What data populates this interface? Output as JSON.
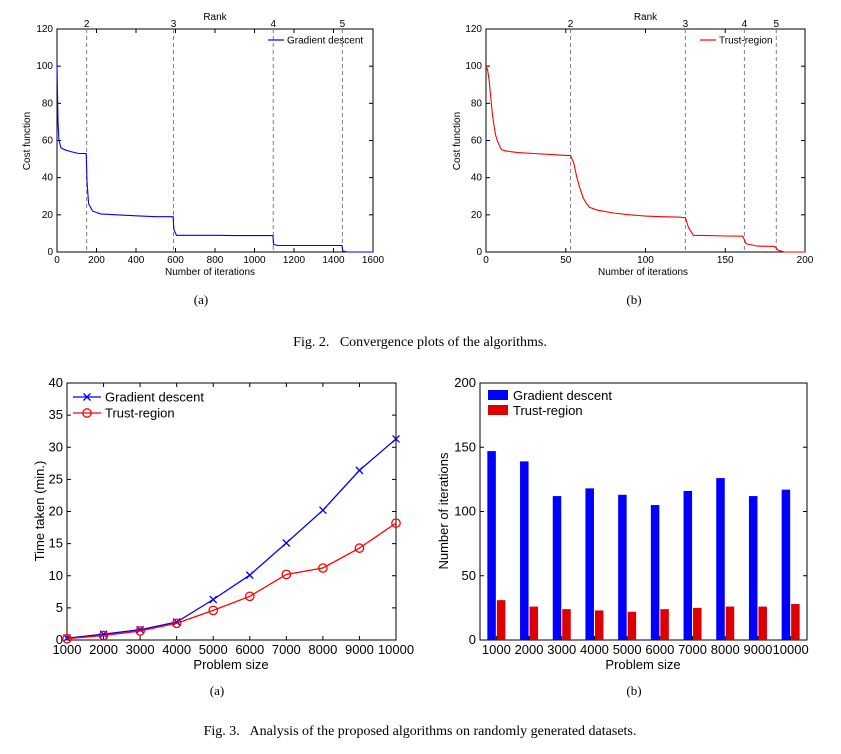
{
  "figure2": {
    "caption": "Fig. 2.   Convergence plots of the algorithms.",
    "subcaptions": [
      "(a)",
      "(b)"
    ]
  },
  "figure3": {
    "caption": "Fig. 3.   Analysis of the proposed algorithms on randomly generated datasets.",
    "subcaptions": [
      "(a)",
      "(b)"
    ]
  },
  "colors": {
    "gd": "#0000ff",
    "tr": "#ff0000",
    "bar_gd": "#0000ff",
    "bar_tr": "#dd0000",
    "rank_line": "#808080"
  },
  "chart_data": [
    {
      "id": "fig2a",
      "type": "line",
      "title": "Rank",
      "xlabel": "Number of iterations",
      "ylabel": "Cost function",
      "xlim": [
        0,
        1600
      ],
      "ylim": [
        0,
        120
      ],
      "xticks": [
        0,
        200,
        400,
        600,
        800,
        1000,
        1200,
        1400,
        1600
      ],
      "yticks": [
        0,
        20,
        40,
        60,
        80,
        100,
        120
      ],
      "rank_markers": [
        {
          "x": 150,
          "label": "2"
        },
        {
          "x": 590,
          "label": "3"
        },
        {
          "x": 1095,
          "label": "4"
        },
        {
          "x": 1445,
          "label": "5"
        }
      ],
      "legend_position": "top-right",
      "series": [
        {
          "name": "Gradient descent",
          "color": "#0000ff",
          "x": [
            0,
            5,
            10,
            20,
            40,
            70,
            110,
            148,
            152,
            160,
            180,
            220,
            300,
            400,
            500,
            588,
            592,
            605,
            700,
            800,
            900,
            1000,
            1093,
            1097,
            1120,
            1200,
            1300,
            1443,
            1447,
            1470,
            1600
          ],
          "y": [
            100,
            70,
            60,
            56,
            55,
            54,
            53,
            53,
            38,
            26,
            22,
            20.5,
            20,
            19.5,
            19,
            19,
            12,
            9,
            9,
            9,
            8.8,
            8.8,
            8.8,
            4,
            3.5,
            3.5,
            3.5,
            3.5,
            0.5,
            0,
            0
          ]
        }
      ]
    },
    {
      "id": "fig2b",
      "type": "line",
      "title": "Rank",
      "xlabel": "Number of iterations",
      "ylabel": "Cost function",
      "xlim": [
        0,
        200
      ],
      "ylim": [
        0,
        120
      ],
      "xticks": [
        0,
        50,
        100,
        150,
        200
      ],
      "yticks": [
        0,
        20,
        40,
        60,
        80,
        100,
        120
      ],
      "rank_markers": [
        {
          "x": 53,
          "label": "2"
        },
        {
          "x": 125,
          "label": "3"
        },
        {
          "x": 162,
          "label": "4"
        },
        {
          "x": 182,
          "label": "5"
        }
      ],
      "legend_position": "top-right",
      "series": [
        {
          "name": "Trust-region",
          "color": "#ff0000",
          "x": [
            0,
            1,
            2,
            3,
            4,
            5,
            6,
            7,
            8,
            9,
            10,
            12,
            15,
            20,
            30,
            40,
            50,
            53,
            55,
            57,
            59,
            61,
            63,
            65,
            70,
            80,
            90,
            100,
            110,
            120,
            125,
            127,
            130,
            140,
            150,
            161,
            163,
            170,
            181,
            183,
            187,
            200
          ],
          "y": [
            100,
            98,
            92,
            83,
            74,
            68,
            63,
            60,
            58,
            56,
            55,
            54.5,
            54,
            53.5,
            53,
            52.5,
            52,
            52,
            48,
            40,
            34,
            29,
            26,
            24,
            22.5,
            21,
            20,
            19.3,
            19,
            18.8,
            18.5,
            13,
            9,
            8.8,
            8.6,
            8.5,
            4.5,
            3.2,
            3,
            1,
            0,
            0
          ]
        }
      ]
    },
    {
      "id": "fig3a",
      "type": "line",
      "xlabel": "Problem size",
      "ylabel": "Time taken (min.)",
      "xlim": [
        1000,
        10000
      ],
      "ylim": [
        0,
        40
      ],
      "xticks": [
        1000,
        2000,
        3000,
        4000,
        5000,
        6000,
        7000,
        8000,
        9000,
        10000
      ],
      "yticks": [
        0,
        5,
        10,
        15,
        20,
        25,
        30,
        35,
        40
      ],
      "legend_position": "top-left",
      "series": [
        {
          "name": "Gradient descent",
          "color": "#0000ff",
          "marker": "x",
          "x": [
            1000,
            2000,
            3000,
            4000,
            5000,
            6000,
            7000,
            8000,
            9000,
            10000
          ],
          "y": [
            0.3,
            0.9,
            1.6,
            2.8,
            6.3,
            10.1,
            15.1,
            20.2,
            26.4,
            31.3
          ]
        },
        {
          "name": "Trust-region",
          "color": "#ff0000",
          "marker": "o",
          "x": [
            1000,
            2000,
            3000,
            4000,
            5000,
            6000,
            7000,
            8000,
            9000,
            10000
          ],
          "y": [
            0.2,
            0.7,
            1.4,
            2.6,
            4.6,
            6.8,
            10.2,
            11.2,
            14.3,
            18.2
          ]
        }
      ]
    },
    {
      "id": "fig3b",
      "type": "bar",
      "xlabel": "Problem size",
      "ylabel": "Number of iterations",
      "ylim": [
        0,
        200
      ],
      "yticks": [
        0,
        50,
        100,
        150,
        200
      ],
      "categories": [
        "1000",
        "2000",
        "3000",
        "4000",
        "5000",
        "6000",
        "7000",
        "8000",
        "9000",
        "10000"
      ],
      "legend_position": "top-left",
      "series": [
        {
          "name": "Gradient descent",
          "color": "#0000ff",
          "values": [
            147,
            139,
            112,
            118,
            113,
            105,
            116,
            126,
            112,
            117
          ]
        },
        {
          "name": "Trust-region",
          "color": "#dd0000",
          "values": [
            31,
            26,
            24,
            23,
            22,
            24,
            25,
            26,
            26,
            28
          ]
        }
      ]
    }
  ]
}
